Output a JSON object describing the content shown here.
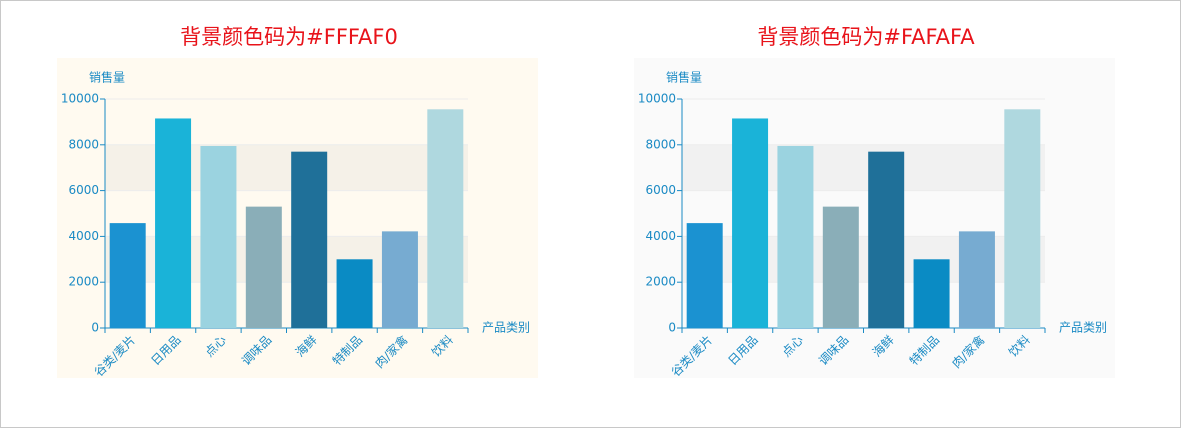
{
  "chart_data": [
    {
      "type": "bar",
      "title": "背景颜色码为#FFFAF0",
      "background": "#FFFAF0",
      "y_label": "销售量",
      "x_label": "产品类别",
      "categories": [
        "谷类/麦片",
        "日用品",
        "点心",
        "调味品",
        "海鲜",
        "特制品",
        "肉/家禽",
        "饮料"
      ],
      "values": [
        4580,
        9150,
        7950,
        5300,
        7700,
        3000,
        4220,
        9550
      ],
      "colors": [
        "#1b92d1",
        "#1ab3d8",
        "#9bd3e0",
        "#8aaeb8",
        "#1f7099",
        "#0a8bc4",
        "#77abd1",
        "#afd8df"
      ],
      "ylim": [
        0,
        10000
      ],
      "yticks": [
        0,
        2000,
        4000,
        6000,
        8000,
        10000
      ],
      "grid": true
    },
    {
      "type": "bar",
      "title": "背景颜色码为#FAFAFA",
      "background": "#FAFAFA",
      "y_label": "销售量",
      "x_label": "产品类别",
      "categories": [
        "谷类/麦片",
        "日用品",
        "点心",
        "调味品",
        "海鲜",
        "特制品",
        "肉/家禽",
        "饮料"
      ],
      "values": [
        4580,
        9150,
        7950,
        5300,
        7700,
        3000,
        4220,
        9550
      ],
      "colors": [
        "#1b92d1",
        "#1ab3d8",
        "#9bd3e0",
        "#8aaeb8",
        "#1f7099",
        "#0a8bc4",
        "#77abd1",
        "#afd8df"
      ],
      "ylim": [
        0,
        10000
      ],
      "yticks": [
        0,
        2000,
        4000,
        6000,
        8000,
        10000
      ],
      "grid": true
    }
  ]
}
